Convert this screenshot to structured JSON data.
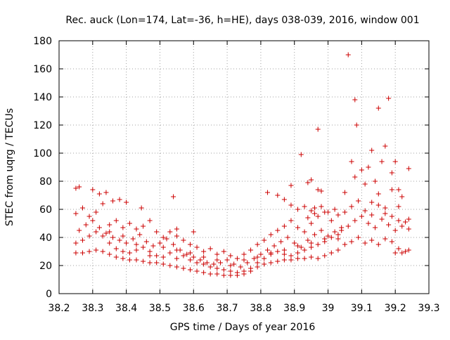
{
  "chart_data": {
    "type": "scatter",
    "title": "Rec. auck (Lon=174, Lat=-36, h=HE), days 038-039, 2016, window 001",
    "xlabel": "GPS time / Days of year 2016",
    "ylabel": "STEC from uqrg / TECUs",
    "xlim": [
      38.2,
      39.3
    ],
    "ylim": [
      0,
      180
    ],
    "xticks": [
      "38.2",
      "38.3",
      "38.4",
      "38.5",
      "38.6",
      "38.7",
      "38.8",
      "38.9",
      "39",
      "39.1",
      "39.2",
      "39.3"
    ],
    "yticks": [
      "0",
      "20",
      "40",
      "60",
      "80",
      "100",
      "120",
      "140",
      "160",
      "180"
    ],
    "grid": true,
    "marker": "plus",
    "color": "#cc0000",
    "series": [
      {
        "name": "STEC",
        "points": [
          [
            38.25,
            29
          ],
          [
            38.27,
            29
          ],
          [
            38.29,
            30
          ],
          [
            38.31,
            31
          ],
          [
            38.33,
            30
          ],
          [
            38.35,
            28
          ],
          [
            38.37,
            26
          ],
          [
            38.39,
            25
          ],
          [
            38.41,
            24
          ],
          [
            38.43,
            24
          ],
          [
            38.45,
            23
          ],
          [
            38.47,
            22
          ],
          [
            38.49,
            22
          ],
          [
            38.51,
            21
          ],
          [
            38.53,
            20
          ],
          [
            38.55,
            19
          ],
          [
            38.57,
            18
          ],
          [
            38.59,
            17
          ],
          [
            38.61,
            16
          ],
          [
            38.63,
            15
          ],
          [
            38.65,
            14
          ],
          [
            38.67,
            14
          ],
          [
            38.69,
            13
          ],
          [
            38.71,
            13
          ],
          [
            38.73,
            13
          ],
          [
            38.75,
            14
          ],
          [
            38.77,
            16
          ],
          [
            38.79,
            19
          ],
          [
            38.81,
            21
          ],
          [
            38.83,
            22
          ],
          [
            38.85,
            23
          ],
          [
            38.87,
            24
          ],
          [
            38.89,
            24
          ],
          [
            38.91,
            25
          ],
          [
            38.93,
            25
          ],
          [
            38.95,
            26
          ],
          [
            38.97,
            25
          ],
          [
            38.99,
            27
          ],
          [
            39.01,
            29
          ],
          [
            39.03,
            31
          ],
          [
            38.25,
            36
          ],
          [
            38.27,
            38
          ],
          [
            38.29,
            41
          ],
          [
            38.31,
            44
          ],
          [
            38.33,
            41
          ],
          [
            38.35,
            36
          ],
          [
            38.37,
            32
          ],
          [
            38.39,
            30
          ],
          [
            38.41,
            29
          ],
          [
            38.43,
            31
          ],
          [
            38.45,
            33
          ],
          [
            38.47,
            30
          ],
          [
            38.49,
            27
          ],
          [
            38.51,
            26
          ],
          [
            38.53,
            29
          ],
          [
            38.55,
            31
          ],
          [
            38.57,
            27
          ],
          [
            38.59,
            24
          ],
          [
            38.61,
            22
          ],
          [
            38.63,
            21
          ],
          [
            38.65,
            19
          ],
          [
            38.67,
            18
          ],
          [
            38.69,
            17
          ],
          [
            38.71,
            16
          ],
          [
            38.73,
            15
          ],
          [
            38.75,
            16
          ],
          [
            38.77,
            18
          ],
          [
            38.79,
            22
          ],
          [
            38.81,
            25
          ],
          [
            38.83,
            28
          ],
          [
            38.85,
            30
          ],
          [
            38.87,
            28
          ],
          [
            38.89,
            27
          ],
          [
            38.91,
            29
          ],
          [
            38.93,
            31
          ],
          [
            38.95,
            33
          ],
          [
            38.97,
            35
          ],
          [
            38.99,
            37
          ],
          [
            39.01,
            40
          ],
          [
            39.03,
            42
          ],
          [
            38.26,
            45
          ],
          [
            38.28,
            49
          ],
          [
            38.3,
            52
          ],
          [
            38.32,
            47
          ],
          [
            38.34,
            43
          ],
          [
            38.36,
            40
          ],
          [
            38.38,
            38
          ],
          [
            38.4,
            36
          ],
          [
            38.42,
            39
          ],
          [
            38.44,
            42
          ],
          [
            38.46,
            37
          ],
          [
            38.48,
            34
          ],
          [
            38.5,
            36
          ],
          [
            38.52,
            39
          ],
          [
            38.54,
            35
          ],
          [
            38.56,
            31
          ],
          [
            38.58,
            28
          ],
          [
            38.6,
            26
          ],
          [
            38.62,
            24
          ],
          [
            38.64,
            22
          ],
          [
            38.66,
            21
          ],
          [
            38.68,
            22
          ],
          [
            38.7,
            24
          ],
          [
            38.72,
            21
          ],
          [
            38.74,
            19
          ],
          [
            38.76,
            22
          ],
          [
            38.78,
            25
          ],
          [
            38.8,
            28
          ],
          [
            38.82,
            31
          ],
          [
            38.84,
            34
          ],
          [
            38.86,
            37
          ],
          [
            38.88,
            40
          ],
          [
            38.9,
            36
          ],
          [
            38.92,
            33
          ],
          [
            38.94,
            38
          ],
          [
            38.96,
            42
          ],
          [
            38.98,
            45
          ],
          [
            39.0,
            41
          ],
          [
            39.02,
            44
          ],
          [
            39.04,
            47
          ],
          [
            38.25,
            57
          ],
          [
            38.27,
            61
          ],
          [
            38.29,
            55
          ],
          [
            38.31,
            58
          ],
          [
            38.33,
            64
          ],
          [
            38.35,
            49
          ],
          [
            38.37,
            52
          ],
          [
            38.39,
            47
          ],
          [
            38.41,
            50
          ],
          [
            38.43,
            46
          ],
          [
            38.45,
            48
          ],
          [
            38.47,
            52
          ],
          [
            38.49,
            44
          ],
          [
            38.51,
            40
          ],
          [
            38.53,
            44
          ],
          [
            38.55,
            41
          ],
          [
            38.57,
            38
          ],
          [
            38.59,
            35
          ],
          [
            38.61,
            33
          ],
          [
            38.63,
            30
          ],
          [
            38.65,
            32
          ],
          [
            38.67,
            28
          ],
          [
            38.69,
            30
          ],
          [
            38.71,
            27
          ],
          [
            38.73,
            25
          ],
          [
            38.75,
            28
          ],
          [
            38.77,
            31
          ],
          [
            38.79,
            35
          ],
          [
            38.81,
            38
          ],
          [
            38.83,
            42
          ],
          [
            38.85,
            45
          ],
          [
            38.87,
            48
          ],
          [
            38.89,
            52
          ],
          [
            38.91,
            47
          ],
          [
            38.93,
            44
          ],
          [
            38.95,
            50
          ],
          [
            38.97,
            55
          ],
          [
            38.99,
            58
          ],
          [
            39.01,
            52
          ],
          [
            39.03,
            56
          ],
          [
            38.25,
            75
          ],
          [
            38.26,
            76
          ],
          [
            38.3,
            74
          ],
          [
            38.32,
            71
          ],
          [
            38.34,
            72
          ],
          [
            38.36,
            66
          ],
          [
            38.38,
            67
          ],
          [
            38.4,
            65
          ],
          [
            38.445,
            61
          ],
          [
            38.54,
            69
          ],
          [
            38.82,
            72
          ],
          [
            38.85,
            70
          ],
          [
            38.87,
            67
          ],
          [
            38.89,
            63
          ],
          [
            38.91,
            60
          ],
          [
            38.93,
            62
          ],
          [
            38.95,
            59
          ],
          [
            38.96,
            61
          ],
          [
            38.97,
            74
          ],
          [
            38.98,
            73
          ],
          [
            38.94,
            79
          ],
          [
            38.95,
            81
          ],
          [
            38.89,
            77
          ],
          [
            38.92,
            99
          ],
          [
            38.97,
            117
          ],
          [
            39.05,
            72
          ],
          [
            39.07,
            94
          ],
          [
            39.08,
            83
          ],
          [
            39.06,
            170
          ],
          [
            39.08,
            138
          ],
          [
            39.085,
            120
          ],
          [
            39.1,
            88
          ],
          [
            39.12,
            90
          ],
          [
            39.13,
            102
          ],
          [
            39.14,
            80
          ],
          [
            39.15,
            132
          ],
          [
            39.16,
            94
          ],
          [
            39.17,
            105
          ],
          [
            39.18,
            139
          ],
          [
            39.19,
            86
          ],
          [
            39.2,
            94
          ],
          [
            39.21,
            74
          ],
          [
            39.22,
            69
          ],
          [
            39.24,
            89
          ],
          [
            39.11,
            78
          ],
          [
            39.13,
            65
          ],
          [
            39.15,
            71
          ],
          [
            39.17,
            61
          ],
          [
            39.19,
            74
          ],
          [
            39.21,
            62
          ],
          [
            39.05,
            35
          ],
          [
            39.07,
            37
          ],
          [
            39.09,
            40
          ],
          [
            39.11,
            36
          ],
          [
            39.13,
            38
          ],
          [
            39.15,
            35
          ],
          [
            39.17,
            39
          ],
          [
            39.19,
            37
          ],
          [
            39.21,
            32
          ],
          [
            39.23,
            30
          ],
          [
            39.04,
            45
          ],
          [
            39.06,
            48
          ],
          [
            39.08,
            52
          ],
          [
            39.1,
            55
          ],
          [
            39.12,
            50
          ],
          [
            39.14,
            47
          ],
          [
            39.16,
            53
          ],
          [
            39.18,
            49
          ],
          [
            39.2,
            45
          ],
          [
            39.22,
            48
          ],
          [
            39.05,
            58
          ],
          [
            39.07,
            62
          ],
          [
            39.09,
            66
          ],
          [
            39.11,
            59
          ],
          [
            39.13,
            56
          ],
          [
            39.15,
            63
          ],
          [
            39.17,
            57
          ],
          [
            39.19,
            55
          ],
          [
            39.21,
            52
          ],
          [
            39.23,
            51
          ],
          [
            39.24,
            53
          ],
          [
            39.24,
            46
          ],
          [
            39.24,
            31
          ],
          [
            39.2,
            29
          ],
          [
            39.22,
            29
          ],
          [
            39.02,
            60
          ],
          [
            39.0,
            58
          ],
          [
            38.98,
            62
          ],
          [
            38.96,
            57
          ],
          [
            38.94,
            54
          ],
          [
            38.43,
            35
          ],
          [
            38.47,
            27
          ],
          [
            38.51,
            33
          ],
          [
            38.55,
            25
          ],
          [
            38.59,
            29
          ],
          [
            38.63,
            26
          ],
          [
            38.67,
            24
          ],
          [
            38.71,
            20
          ],
          [
            38.75,
            24
          ],
          [
            38.79,
            26
          ],
          [
            38.83,
            29
          ],
          [
            38.87,
            31
          ],
          [
            38.91,
            34
          ],
          [
            38.95,
            36
          ],
          [
            38.99,
            39
          ],
          [
            39.03,
            39
          ],
          [
            38.35,
            44
          ],
          [
            38.39,
            41
          ],
          [
            38.55,
            46
          ],
          [
            38.6,
            44
          ]
        ]
      }
    ]
  }
}
